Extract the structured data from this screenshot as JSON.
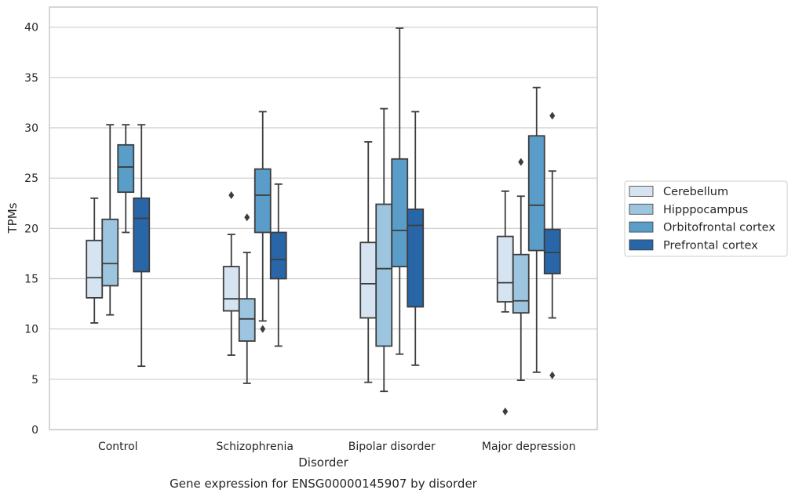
{
  "chart_data": {
    "type": "boxplot",
    "title": "",
    "caption": "Gene expression for ENSG00000145907 by disorder",
    "xlabel": "Disorder",
    "ylabel": "TPMs",
    "ylim": [
      0,
      42
    ],
    "yticks": [
      0,
      5,
      10,
      15,
      20,
      25,
      30,
      35,
      40
    ],
    "grid": "horizontal",
    "legend_position": "right",
    "categories": [
      "Control",
      "Schizophrenia",
      "Bipolar disorder",
      "Major depression"
    ],
    "series": [
      {
        "name": "Cerebellum",
        "color": "#d6e4f1",
        "boxes": [
          {
            "whislo": 10.6,
            "q1": 13.1,
            "med": 15.1,
            "q3": 18.8,
            "whishi": 23.0,
            "fliers": []
          },
          {
            "whislo": 7.4,
            "q1": 11.8,
            "med": 13.0,
            "q3": 16.2,
            "whishi": 19.4,
            "fliers": [
              23.3
            ]
          },
          {
            "whislo": 4.7,
            "q1": 11.1,
            "med": 14.5,
            "q3": 18.6,
            "whishi": 28.6,
            "fliers": []
          },
          {
            "whislo": 11.7,
            "q1": 12.7,
            "med": 14.6,
            "q3": 19.2,
            "whishi": 23.7,
            "fliers": [
              1.8
            ]
          }
        ]
      },
      {
        "name": "Hipppocampus",
        "color": "#9dc5df",
        "boxes": [
          {
            "whislo": 11.4,
            "q1": 14.3,
            "med": 16.5,
            "q3": 20.9,
            "whishi": 30.3,
            "fliers": []
          },
          {
            "whislo": 4.6,
            "q1": 8.8,
            "med": 11.0,
            "q3": 13.0,
            "whishi": 17.6,
            "fliers": [
              21.1
            ]
          },
          {
            "whislo": 3.8,
            "q1": 8.3,
            "med": 16.0,
            "q3": 22.4,
            "whishi": 31.9,
            "fliers": []
          },
          {
            "whislo": 4.9,
            "q1": 11.6,
            "med": 12.8,
            "q3": 17.4,
            "whishi": 23.2,
            "fliers": [
              26.6
            ]
          }
        ]
      },
      {
        "name": "Orbitofrontal cortex",
        "color": "#5a9dc9",
        "boxes": [
          {
            "whislo": 19.6,
            "q1": 23.6,
            "med": 26.1,
            "q3": 28.3,
            "whishi": 30.3,
            "fliers": []
          },
          {
            "whislo": 10.8,
            "q1": 19.6,
            "med": 23.3,
            "q3": 25.9,
            "whishi": 31.6,
            "fliers": [
              10.0
            ]
          },
          {
            "whislo": 7.5,
            "q1": 16.2,
            "med": 19.8,
            "q3": 26.9,
            "whishi": 39.9,
            "fliers": []
          },
          {
            "whislo": 5.7,
            "q1": 17.8,
            "med": 22.3,
            "q3": 29.2,
            "whishi": 34.0,
            "fliers": []
          }
        ]
      },
      {
        "name": "Prefrontal cortex",
        "color": "#2966a8",
        "boxes": [
          {
            "whislo": 6.3,
            "q1": 15.7,
            "med": 21.0,
            "q3": 23.0,
            "whishi": 30.3,
            "fliers": []
          },
          {
            "whislo": 8.3,
            "q1": 15.0,
            "med": 16.9,
            "q3": 19.6,
            "whishi": 24.4,
            "fliers": []
          },
          {
            "whislo": 6.4,
            "q1": 12.2,
            "med": 20.3,
            "q3": 21.9,
            "whishi": 31.6,
            "fliers": []
          },
          {
            "whislo": 11.1,
            "q1": 15.5,
            "med": 17.6,
            "q3": 19.9,
            "whishi": 25.7,
            "fliers": [
              5.4,
              31.2
            ]
          }
        ]
      }
    ]
  }
}
